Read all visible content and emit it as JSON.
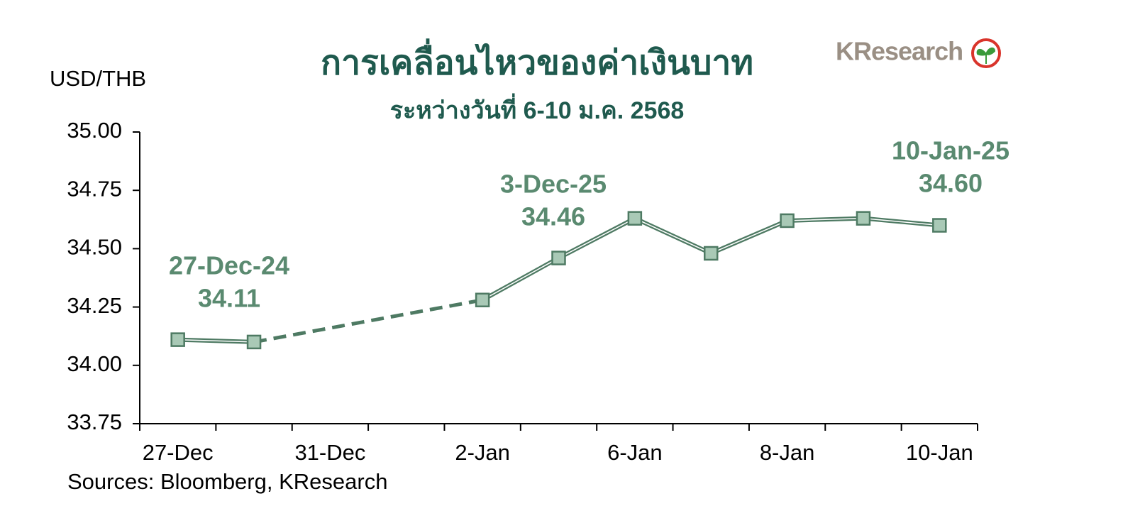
{
  "chart_data": {
    "type": "line",
    "title": "การเคลื่อนไหวของค่าเงินบาท",
    "subtitle": "ระหว่างวันที่ 6-10 ม.ค. 2568",
    "y_label": "USD/THB",
    "source": "Sources: Bloomberg, KResearch",
    "logo": "KResearch",
    "categories": [
      "27-Dec",
      null,
      "31-Dec",
      null,
      "2-Jan",
      null,
      "6-Jan",
      null,
      "8-Jan",
      null,
      "10-Jan"
    ],
    "series": [
      {
        "name": "USD/THB",
        "color": "#4e7a63",
        "marker_color": "#a9c9b6",
        "values": [
          34.11,
          34.1,
          null,
          null,
          34.28,
          34.46,
          34.63,
          34.48,
          34.62,
          34.63,
          34.6
        ]
      }
    ],
    "annotations": [
      {
        "label": "27-Dec-24",
        "value": "34.11"
      },
      {
        "label": "3-Dec-25",
        "value": "34.46"
      },
      {
        "label": "10-Jan-25",
        "value": "34.60"
      }
    ],
    "ylim": [
      33.75,
      35.0
    ],
    "yticks": [
      {
        "value": 33.75,
        "label": "33.75"
      },
      {
        "value": 34.0,
        "label": "34.00"
      },
      {
        "value": 34.25,
        "label": "34.25"
      },
      {
        "value": 34.5,
        "label": "34.50"
      },
      {
        "value": 34.75,
        "label": "34.75"
      },
      {
        "value": 35.0,
        "label": "35.00"
      }
    ],
    "grid": false
  }
}
